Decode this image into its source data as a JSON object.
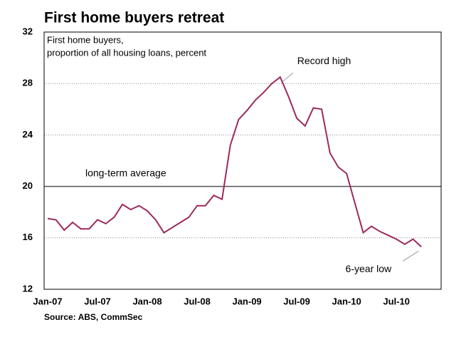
{
  "chart_data": {
    "type": "line",
    "title": "First home buyers retreat",
    "subtitle": [
      "First home buyers,",
      "proportion of all housing loans, percent"
    ],
    "source": "Source: ABS, CommSec",
    "categories": [
      "Jan-07",
      null,
      null,
      null,
      null,
      null,
      "Jul-07",
      null,
      null,
      null,
      null,
      null,
      "Jan-08",
      null,
      null,
      null,
      null,
      null,
      "Jul-08",
      null,
      null,
      null,
      null,
      null,
      "Jan-09",
      null,
      null,
      null,
      null,
      null,
      "Jul-09",
      null,
      null,
      null,
      null,
      null,
      "Jan-10",
      null,
      null,
      null,
      null,
      null,
      "Jul-10",
      null,
      null,
      null
    ],
    "series": [
      {
        "name": "First home buyers",
        "color": "#9c2a5c",
        "values": [
          17.5,
          17.4,
          16.6,
          17.2,
          16.7,
          16.7,
          17.4,
          17.1,
          17.6,
          18.6,
          18.2,
          18.5,
          18.1,
          17.4,
          16.4,
          16.8,
          17.2,
          17.6,
          18.5,
          18.5,
          19.3,
          19.0,
          23.2,
          25.2,
          25.9,
          26.7,
          27.3,
          28.0,
          28.5,
          27.0,
          25.3,
          24.7,
          26.1,
          26.0,
          22.6,
          21.5,
          21.0,
          18.7,
          16.4,
          16.9,
          16.5,
          16.2,
          15.9,
          15.5,
          15.9,
          15.3
        ]
      }
    ],
    "ylim": [
      12,
      32
    ],
    "yticks": [
      12,
      16,
      20,
      24,
      28,
      32
    ],
    "grid": true,
    "reference_line": {
      "value": 20,
      "label": "long-term average"
    },
    "annotations": [
      {
        "text": "Record high"
      },
      {
        "text": "6-year low"
      }
    ]
  }
}
